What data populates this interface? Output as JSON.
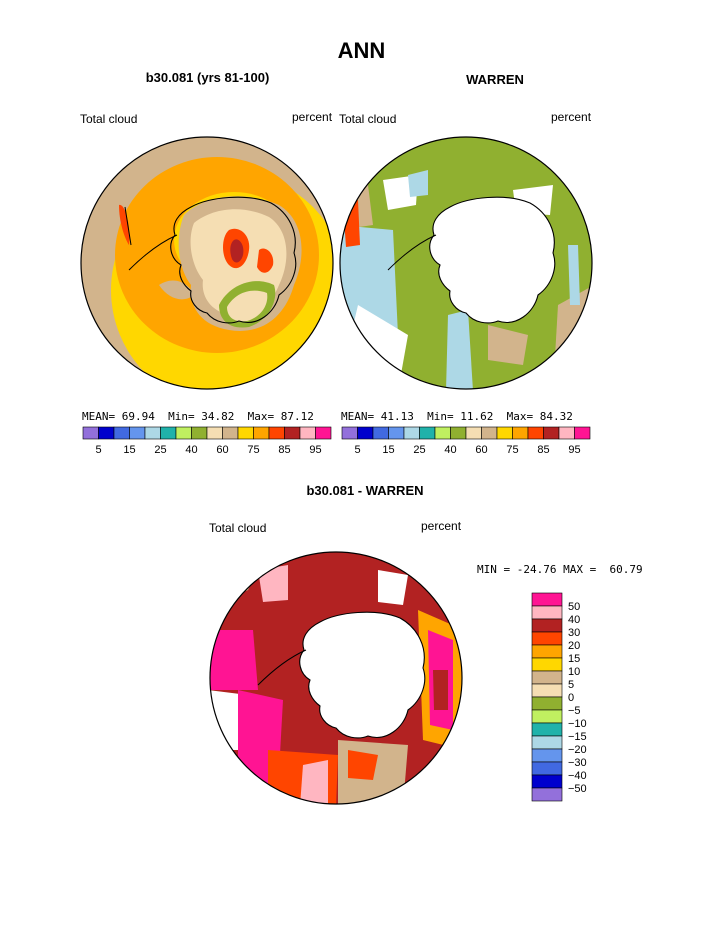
{
  "page": {
    "title": "ANN"
  },
  "chart_data": [
    {
      "type": "heatmap",
      "title": "b30.081 (yrs 81-100)",
      "variable": "Total cloud",
      "units": "percent",
      "projection": "south polar stereographic",
      "stats": {
        "mean_label": "MEAN=",
        "mean": "69.94",
        "min_label": "Min=",
        "min": "34.82",
        "max_label": "Max=",
        "max": "87.12"
      },
      "colorbar": {
        "orientation": "horizontal",
        "levels": [
          "5",
          "15",
          "25",
          "40",
          "60",
          "75",
          "85",
          "95"
        ],
        "colors": [
          "#9370DB",
          "#0000CD",
          "#4169E1",
          "#6495ED",
          "#ADD8E6",
          "#20B2AA",
          "#C0F060",
          "#90B030",
          "#F5DEB3",
          "#D2B48C",
          "#FFD700",
          "#FFA500",
          "#FF4500",
          "#B22222",
          "#FFB6C1",
          "#FF1493"
        ]
      }
    },
    {
      "type": "heatmap",
      "title": "WARREN",
      "variable": "Total cloud",
      "units": "percent",
      "projection": "south polar stereographic",
      "stats": {
        "mean_label": "MEAN=",
        "mean": "41.13",
        "min_label": "Min=",
        "min": "11.62",
        "max_label": "Max=",
        "max": "84.32"
      },
      "colorbar": {
        "orientation": "horizontal",
        "levels": [
          "5",
          "15",
          "25",
          "40",
          "60",
          "75",
          "85",
          "95"
        ],
        "colors": [
          "#9370DB",
          "#0000CD",
          "#4169E1",
          "#6495ED",
          "#ADD8E6",
          "#20B2AA",
          "#C0F060",
          "#90B030",
          "#F5DEB3",
          "#D2B48C",
          "#FFD700",
          "#FFA500",
          "#FF4500",
          "#B22222",
          "#FFB6C1",
          "#FF1493"
        ]
      }
    },
    {
      "type": "heatmap",
      "title": "b30.081 - WARREN",
      "variable": "Total cloud",
      "units": "percent",
      "projection": "south polar stereographic",
      "stats": {
        "min_label": "MIN =",
        "min": "-24.76",
        "max_label": "MAX =",
        "max": "60.79"
      },
      "colorbar": {
        "orientation": "vertical",
        "levels": [
          "50",
          "40",
          "30",
          "20",
          "15",
          "10",
          "5",
          "0",
          "−5",
          "−10",
          "−15",
          "−20",
          "−30",
          "−40",
          "−50"
        ],
        "colors": [
          "#FF1493",
          "#FFB6C1",
          "#B22222",
          "#FF4500",
          "#FFA500",
          "#FFD700",
          "#D2B48C",
          "#F5DEB3",
          "#90B030",
          "#C0F060",
          "#20B2AA",
          "#ADD8E6",
          "#6495ED",
          "#4169E1",
          "#0000CD",
          "#9370DB"
        ]
      }
    }
  ]
}
